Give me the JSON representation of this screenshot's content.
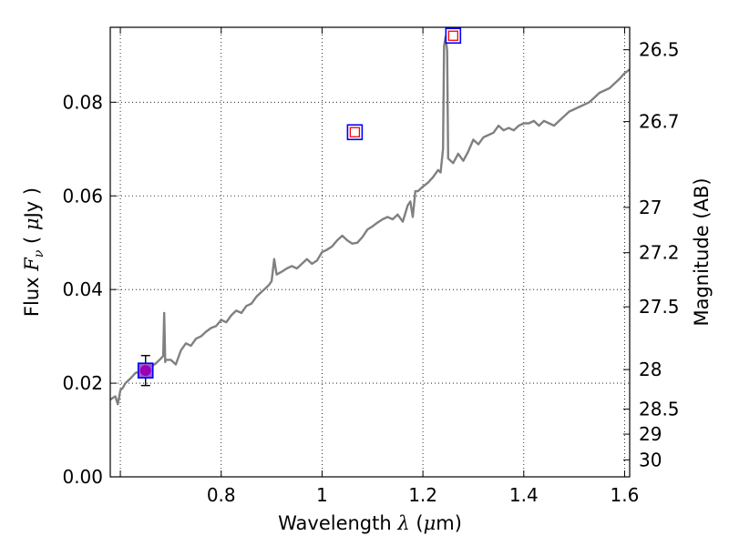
{
  "chart_data": {
    "type": "line",
    "xlabel": {
      "prefix": "Wavelength",
      "symbol": "λ",
      "unit_open": "(",
      "unit_mu": "μ",
      "unit_rest": "m)"
    },
    "ylabel": {
      "prefix": "Flux",
      "symbol": "F",
      "subscript": "ν",
      "unit_open": "(",
      "unit_mu": "μ",
      "unit_rest": "Jy",
      "unit_close": ")"
    },
    "y2label": "Magnitude (AB)",
    "xlim": [
      0.58,
      1.61
    ],
    "ylim": [
      0,
      0.096
    ],
    "grid": true,
    "x_ticks": [
      {
        "value": 0.6,
        "label": ""
      },
      {
        "value": 0.8,
        "label": "0.8"
      },
      {
        "value": 1.0,
        "label": "1"
      },
      {
        "value": 1.2,
        "label": "1.2"
      },
      {
        "value": 1.4,
        "label": "1.4"
      },
      {
        "value": 1.6,
        "label": "1.6"
      }
    ],
    "y_ticks": [
      {
        "value": 0.0,
        "label": "0.00"
      },
      {
        "value": 0.02,
        "label": "0.02"
      },
      {
        "value": 0.04,
        "label": "0.04"
      },
      {
        "value": 0.06,
        "label": "0.06"
      },
      {
        "value": 0.08,
        "label": "0.08"
      }
    ],
    "magnitude_ticks": [
      {
        "mag": 26.5,
        "label": "26.5"
      },
      {
        "mag": 26.7,
        "label": "26.7"
      },
      {
        "mag": 27.0,
        "label": "27"
      },
      {
        "mag": 27.2,
        "label": "27.2"
      },
      {
        "mag": 27.5,
        "label": "27.5"
      },
      {
        "mag": 28.0,
        "label": "28"
      },
      {
        "mag": 28.5,
        "label": "28.5"
      },
      {
        "mag": 29.0,
        "label": "29"
      },
      {
        "mag": 30.0,
        "label": "30"
      }
    ],
    "series": [
      {
        "kind": "model_spectrum",
        "color": "#808080",
        "x": [
          0.58,
          0.59,
          0.595,
          0.6,
          0.605,
          0.61,
          0.62,
          0.63,
          0.64,
          0.65,
          0.66,
          0.67,
          0.675,
          0.68,
          0.685,
          0.687,
          0.689,
          0.69,
          0.7,
          0.71,
          0.72,
          0.73,
          0.74,
          0.75,
          0.76,
          0.77,
          0.78,
          0.79,
          0.8,
          0.81,
          0.82,
          0.83,
          0.84,
          0.85,
          0.86,
          0.87,
          0.88,
          0.89,
          0.895,
          0.9,
          0.905,
          0.91,
          0.92,
          0.93,
          0.94,
          0.95,
          0.96,
          0.97,
          0.98,
          0.99,
          1.0,
          1.01,
          1.02,
          1.03,
          1.04,
          1.05,
          1.06,
          1.07,
          1.08,
          1.09,
          1.1,
          1.11,
          1.12,
          1.13,
          1.14,
          1.15,
          1.16,
          1.17,
          1.175,
          1.18,
          1.185,
          1.19,
          1.2,
          1.21,
          1.22,
          1.23,
          1.235,
          1.24,
          1.242,
          1.245,
          1.248,
          1.25,
          1.26,
          1.27,
          1.28,
          1.29,
          1.3,
          1.31,
          1.32,
          1.33,
          1.34,
          1.35,
          1.36,
          1.37,
          1.38,
          1.39,
          1.4,
          1.41,
          1.42,
          1.43,
          1.44,
          1.45,
          1.46,
          1.47,
          1.48,
          1.49,
          1.5,
          1.51,
          1.52,
          1.53,
          1.54,
          1.55,
          1.56,
          1.57,
          1.58,
          1.59,
          1.6,
          1.61
        ],
        "y": [
          0.0165,
          0.0172,
          0.0155,
          0.0185,
          0.019,
          0.02,
          0.021,
          0.0222,
          0.0225,
          0.023,
          0.0235,
          0.0242,
          0.0247,
          0.0252,
          0.0258,
          0.035,
          0.0245,
          0.025,
          0.025,
          0.024,
          0.027,
          0.0285,
          0.028,
          0.0295,
          0.03,
          0.031,
          0.0318,
          0.0322,
          0.0335,
          0.033,
          0.0345,
          0.0355,
          0.035,
          0.0365,
          0.037,
          0.0385,
          0.0395,
          0.0405,
          0.041,
          0.0418,
          0.0465,
          0.0432,
          0.0438,
          0.0445,
          0.045,
          0.0445,
          0.0455,
          0.0465,
          0.0455,
          0.0462,
          0.048,
          0.0485,
          0.0492,
          0.0505,
          0.0515,
          0.0505,
          0.0498,
          0.05,
          0.0512,
          0.0528,
          0.0535,
          0.0543,
          0.055,
          0.0555,
          0.055,
          0.056,
          0.0545,
          0.058,
          0.0588,
          0.0555,
          0.061,
          0.061,
          0.062,
          0.0628,
          0.064,
          0.0655,
          0.065,
          0.07,
          0.092,
          0.094,
          0.091,
          0.068,
          0.067,
          0.069,
          0.0675,
          0.0695,
          0.072,
          0.071,
          0.0725,
          0.073,
          0.0735,
          0.075,
          0.074,
          0.0745,
          0.074,
          0.075,
          0.0755,
          0.0755,
          0.076,
          0.075,
          0.076,
          0.0755,
          0.075,
          0.076,
          0.077,
          0.078,
          0.0785,
          0.079,
          0.0795,
          0.08,
          0.081,
          0.082,
          0.0825,
          0.083,
          0.084,
          0.085,
          0.0862,
          0.087
        ]
      }
    ],
    "photometry": [
      {
        "x": 0.65,
        "y": 0.0227,
        "marker": "square",
        "edge": "#0000ff",
        "face": "#9a5fc8",
        "error": 0.0032,
        "inner": "circle",
        "inner_color": "#9b00b5"
      },
      {
        "x": 1.065,
        "y": 0.0736,
        "marker": "square",
        "edge": "#0000ff",
        "face": "none",
        "inner": "square",
        "inner_color": "#ff0000"
      },
      {
        "x": 1.26,
        "y": 0.0942,
        "marker": "square",
        "edge": "#0000ff",
        "face": "none",
        "inner": "square",
        "inner_color": "#ff0000"
      }
    ]
  }
}
